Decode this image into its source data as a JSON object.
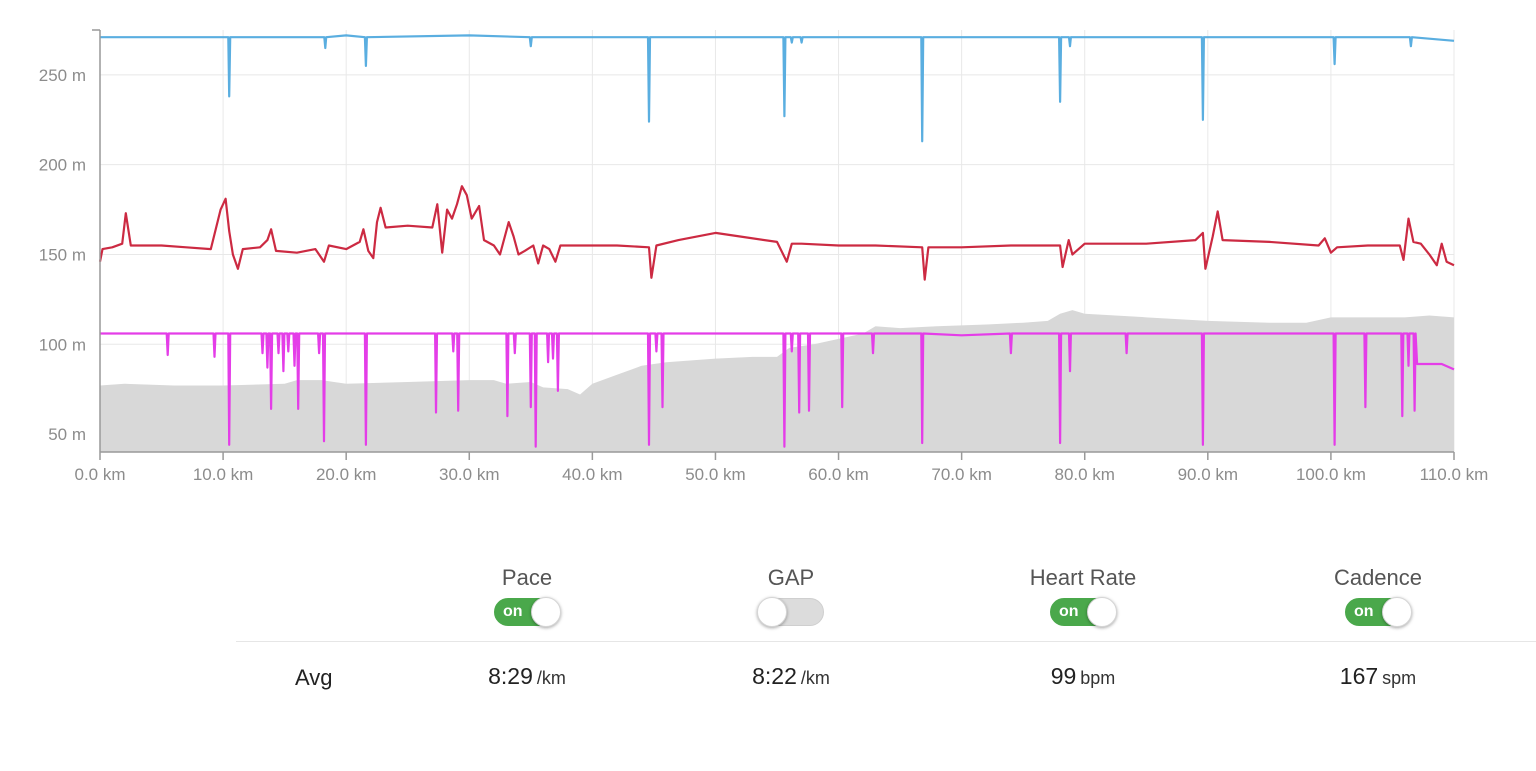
{
  "chart_data": {
    "type": "line",
    "xlabel": "",
    "ylabel": "",
    "x_unit": "km",
    "y_unit": "m",
    "xlim": [
      0,
      110
    ],
    "ylim": [
      40,
      275
    ],
    "x_ticks": [
      "0.0 km",
      "10.0 km",
      "20.0 km",
      "30.0 km",
      "40.0 km",
      "50.0 km",
      "60.0 km",
      "70.0 km",
      "80.0 km",
      "90.0 km",
      "100.0 km",
      "110.0 km"
    ],
    "x_tick_values": [
      0,
      10,
      20,
      30,
      40,
      50,
      60,
      70,
      80,
      90,
      100,
      110
    ],
    "y_ticks": [
      "50 m",
      "100 m",
      "150 m",
      "200 m",
      "250 m"
    ],
    "y_tick_values": [
      50,
      100,
      150,
      200,
      250
    ],
    "grid": true,
    "series": [
      {
        "kind": "line",
        "color": "#5aaee0",
        "baseline": 271,
        "points": [
          [
            0,
            271
          ],
          [
            10,
            271
          ],
          [
            20,
            272
          ],
          [
            30,
            272
          ],
          [
            40,
            271
          ],
          [
            50,
            271
          ],
          [
            60,
            271
          ],
          [
            70,
            271
          ],
          [
            80,
            271
          ],
          [
            90,
            271
          ],
          [
            100,
            271
          ],
          [
            110,
            269
          ]
        ],
        "spikes": [
          [
            10.5,
            238
          ],
          [
            18.3,
            265
          ],
          [
            21.6,
            255
          ],
          [
            35.0,
            266
          ],
          [
            44.6,
            224
          ],
          [
            55.6,
            227
          ],
          [
            56.2,
            268
          ],
          [
            57.0,
            268
          ],
          [
            66.8,
            213
          ],
          [
            78.0,
            235
          ],
          [
            78.8,
            266
          ],
          [
            89.6,
            225
          ],
          [
            100.3,
            256
          ],
          [
            106.5,
            266
          ]
        ]
      },
      {
        "kind": "line",
        "color": "#cc2a42",
        "points": [
          [
            0,
            146
          ],
          [
            0.2,
            153
          ],
          [
            1,
            154
          ],
          [
            1.8,
            156
          ],
          [
            2.1,
            173
          ],
          [
            2.5,
            155
          ],
          [
            5,
            155
          ],
          [
            7,
            154
          ],
          [
            9,
            153
          ],
          [
            9.8,
            175
          ],
          [
            10.2,
            181
          ],
          [
            10.5,
            163
          ],
          [
            10.8,
            150
          ],
          [
            11.2,
            142
          ],
          [
            11.6,
            153
          ],
          [
            13,
            154
          ],
          [
            13.6,
            158
          ],
          [
            13.9,
            164
          ],
          [
            14.3,
            152
          ],
          [
            16,
            151
          ],
          [
            17.5,
            153
          ],
          [
            18.2,
            146
          ],
          [
            18.6,
            155
          ],
          [
            20,
            153
          ],
          [
            21.1,
            157
          ],
          [
            21.4,
            164
          ],
          [
            21.8,
            152
          ],
          [
            22.2,
            148
          ],
          [
            22.5,
            168
          ],
          [
            22.8,
            176
          ],
          [
            23.2,
            165
          ],
          [
            25,
            166
          ],
          [
            27,
            165
          ],
          [
            27.4,
            178
          ],
          [
            27.8,
            151
          ],
          [
            28.2,
            175
          ],
          [
            28.6,
            170
          ],
          [
            29,
            178
          ],
          [
            29.4,
            188
          ],
          [
            29.8,
            183
          ],
          [
            30.2,
            170
          ],
          [
            30.8,
            177
          ],
          [
            31.2,
            158
          ],
          [
            32,
            155
          ],
          [
            32.5,
            150
          ],
          [
            33.2,
            168
          ],
          [
            33.6,
            160
          ],
          [
            34,
            150
          ],
          [
            34.5,
            152
          ],
          [
            35.2,
            155
          ],
          [
            35.6,
            145
          ],
          [
            36,
            155
          ],
          [
            36.5,
            153
          ],
          [
            37,
            146
          ],
          [
            37.4,
            155
          ],
          [
            39,
            155
          ],
          [
            42,
            155
          ],
          [
            44.6,
            154
          ],
          [
            44.8,
            137
          ],
          [
            45.2,
            155
          ],
          [
            47,
            158
          ],
          [
            50,
            162
          ],
          [
            52,
            160
          ],
          [
            55,
            157
          ],
          [
            55.8,
            146
          ],
          [
            56.2,
            156
          ],
          [
            57,
            156
          ],
          [
            60,
            155
          ],
          [
            63,
            155
          ],
          [
            66.8,
            154
          ],
          [
            67,
            136
          ],
          [
            67.3,
            154
          ],
          [
            70,
            154
          ],
          [
            74,
            155
          ],
          [
            78,
            155
          ],
          [
            78.2,
            143
          ],
          [
            78.7,
            158
          ],
          [
            79,
            150
          ],
          [
            80,
            156
          ],
          [
            85,
            156
          ],
          [
            89,
            158
          ],
          [
            89.6,
            162
          ],
          [
            89.8,
            142
          ],
          [
            90.4,
            160
          ],
          [
            90.8,
            174
          ],
          [
            91.2,
            158
          ],
          [
            95,
            157
          ],
          [
            99,
            155
          ],
          [
            99.5,
            159
          ],
          [
            100,
            151
          ],
          [
            100.5,
            154
          ],
          [
            103,
            155
          ],
          [
            105.6,
            155
          ],
          [
            105.9,
            147
          ],
          [
            106.3,
            170
          ],
          [
            106.7,
            157
          ],
          [
            107.3,
            156
          ],
          [
            108,
            150
          ],
          [
            108.6,
            144
          ],
          [
            109,
            156
          ],
          [
            109.4,
            146
          ],
          [
            110,
            144
          ]
        ]
      },
      {
        "kind": "line",
        "color": "#e43de8",
        "baseline": 106,
        "points": [
          [
            0,
            106
          ],
          [
            10,
            106
          ],
          [
            30,
            106
          ],
          [
            50,
            106
          ],
          [
            60,
            106
          ],
          [
            70,
            105
          ],
          [
            80,
            106
          ],
          [
            100,
            106
          ],
          [
            106,
            106
          ],
          [
            107,
            89
          ],
          [
            109,
            89
          ],
          [
            110,
            86
          ]
        ],
        "spikes": [
          [
            5.5,
            94
          ],
          [
            9.3,
            93
          ],
          [
            10.5,
            44
          ],
          [
            13.2,
            95
          ],
          [
            13.6,
            87
          ],
          [
            13.9,
            64
          ],
          [
            14.5,
            95
          ],
          [
            14.9,
            85
          ],
          [
            15.3,
            96
          ],
          [
            15.8,
            88
          ],
          [
            16.1,
            64
          ],
          [
            17.8,
            95
          ],
          [
            18.2,
            46
          ],
          [
            21.6,
            44
          ],
          [
            27.3,
            62
          ],
          [
            28.7,
            96
          ],
          [
            29.1,
            63
          ],
          [
            33.1,
            60
          ],
          [
            33.7,
            95
          ],
          [
            35.0,
            65
          ],
          [
            35.4,
            43
          ],
          [
            36.4,
            90
          ],
          [
            36.8,
            92
          ],
          [
            37.2,
            74
          ],
          [
            44.6,
            44
          ],
          [
            45.2,
            96
          ],
          [
            45.7,
            65
          ],
          [
            55.6,
            43
          ],
          [
            56.2,
            96
          ],
          [
            56.8,
            62
          ],
          [
            57.6,
            63
          ],
          [
            60.3,
            65
          ],
          [
            62.8,
            95
          ],
          [
            66.8,
            45
          ],
          [
            74.0,
            95
          ],
          [
            78.0,
            45
          ],
          [
            78.8,
            85
          ],
          [
            83.4,
            95
          ],
          [
            89.6,
            44
          ],
          [
            100.3,
            44
          ],
          [
            102.8,
            65
          ],
          [
            105.8,
            60
          ],
          [
            106.3,
            88
          ],
          [
            106.8,
            63
          ]
        ]
      },
      {
        "kind": "area",
        "color": "#d8d8d8",
        "points": [
          [
            0,
            77
          ],
          [
            2,
            78
          ],
          [
            6,
            77
          ],
          [
            10,
            77
          ],
          [
            15,
            78
          ],
          [
            16,
            80
          ],
          [
            18,
            80
          ],
          [
            20,
            78
          ],
          [
            25,
            79
          ],
          [
            30,
            80
          ],
          [
            32,
            80
          ],
          [
            33,
            78
          ],
          [
            35,
            79
          ],
          [
            36,
            76
          ],
          [
            38,
            75
          ],
          [
            39,
            72
          ],
          [
            40,
            78
          ],
          [
            42,
            83
          ],
          [
            44,
            88
          ],
          [
            46,
            90
          ],
          [
            50,
            92
          ],
          [
            53,
            93
          ],
          [
            55,
            93
          ],
          [
            56,
            98
          ],
          [
            58,
            100
          ],
          [
            60,
            103
          ],
          [
            62,
            106
          ],
          [
            63,
            110
          ],
          [
            65,
            109
          ],
          [
            68,
            110
          ],
          [
            72,
            111
          ],
          [
            75,
            112
          ],
          [
            77,
            113
          ],
          [
            78,
            117
          ],
          [
            79,
            119
          ],
          [
            80,
            117
          ],
          [
            85,
            115
          ],
          [
            90,
            113
          ],
          [
            95,
            112
          ],
          [
            98,
            112
          ],
          [
            100,
            115
          ],
          [
            103,
            115
          ],
          [
            106,
            115
          ],
          [
            108,
            116
          ],
          [
            110,
            115
          ]
        ]
      }
    ]
  },
  "metrics": [
    {
      "label": "Pace",
      "toggle": "on",
      "toggle_label": "on",
      "avg_value": "8:29",
      "avg_unit": "/km"
    },
    {
      "label": "GAP",
      "toggle": "off",
      "toggle_label": "",
      "avg_value": "8:22",
      "avg_unit": "/km"
    },
    {
      "label": "Heart Rate",
      "toggle": "on",
      "toggle_label": "on",
      "avg_value": "99",
      "avg_unit": "bpm"
    },
    {
      "label": "Cadence",
      "toggle": "on",
      "toggle_label": "on",
      "avg_value": "167",
      "avg_unit": "spm"
    }
  ],
  "avg_row_label": "Avg"
}
